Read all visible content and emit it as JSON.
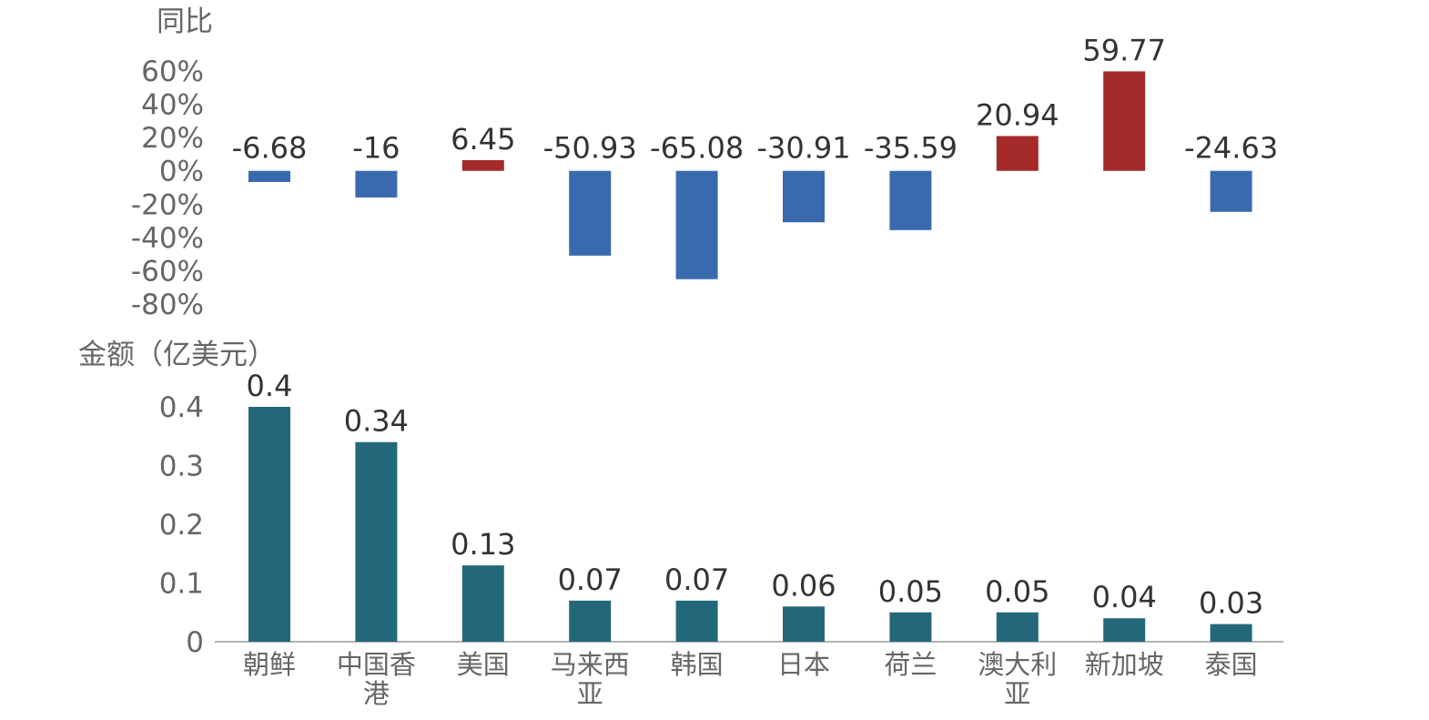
{
  "chart_data": [
    {
      "type": "bar",
      "ylabel": "同比",
      "categories": [
        "朝鲜",
        "中国香港",
        "美国",
        "马来西亚",
        "韩国",
        "日本",
        "荷兰",
        "澳大利亚",
        "新加坡",
        "泰国"
      ],
      "values": [
        -6.68,
        -16,
        6.45,
        -50.93,
        -65.08,
        -30.91,
        -35.59,
        20.94,
        59.77,
        -24.63
      ],
      "data_labels": [
        "-6.68",
        "-16",
        "6.45",
        "-50.93",
        "-65.08",
        "-30.91",
        "-35.59",
        "20.94",
        "59.77",
        "-24.63"
      ],
      "ylim": [
        -80,
        60
      ],
      "yticks": [
        60,
        40,
        20,
        0,
        -20,
        -40,
        -60,
        -80
      ],
      "ytick_labels": [
        "60%",
        "40%",
        "20%",
        "0%",
        "-20%",
        "-40%",
        "-60%",
        "-80%"
      ],
      "positive_color": "#A52A2A",
      "negative_color": "#3A6AAE",
      "grid": false
    },
    {
      "type": "bar",
      "ylabel": "金额（亿美元）",
      "categories": [
        "朝鲜",
        "中国香港",
        "美国",
        "马来西亚",
        "韩国",
        "日本",
        "荷兰",
        "澳大利亚",
        "新加坡",
        "泰国"
      ],
      "category_lines": [
        [
          "朝鲜"
        ],
        [
          "中国香",
          "港"
        ],
        [
          "美国"
        ],
        [
          "马来西",
          "亚"
        ],
        [
          "韩国"
        ],
        [
          "日本"
        ],
        [
          "荷兰"
        ],
        [
          "澳大利",
          "亚"
        ],
        [
          "新加坡"
        ],
        [
          "泰国"
        ]
      ],
      "values": [
        0.4,
        0.34,
        0.13,
        0.07,
        0.07,
        0.06,
        0.05,
        0.05,
        0.04,
        0.03
      ],
      "data_labels": [
        "0.4",
        "0.34",
        "0.13",
        "0.07",
        "0.07",
        "0.06",
        "0.05",
        "0.05",
        "0.04",
        "0.03"
      ],
      "ylim": [
        0,
        0.4
      ],
      "yticks": [
        0.4,
        0.3,
        0.2,
        0.1,
        0
      ],
      "ytick_labels": [
        "0.4",
        "0.3",
        "0.2",
        "0.1",
        "0"
      ],
      "bar_color": "#23687A",
      "grid": false
    }
  ]
}
